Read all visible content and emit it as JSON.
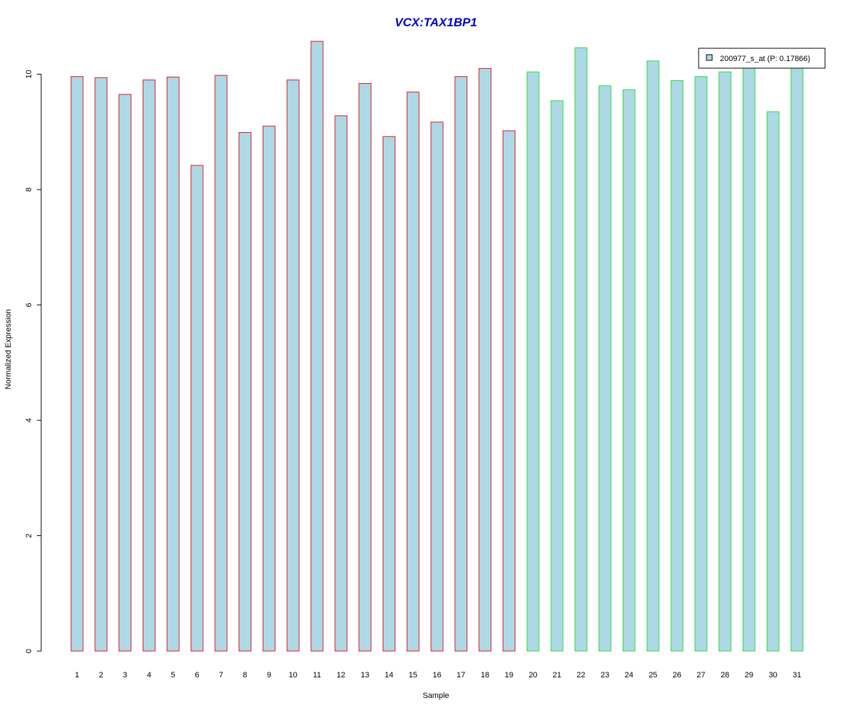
{
  "chart_data": {
    "type": "bar",
    "title": "VCX:TAX1BP1",
    "xlabel": "Sample",
    "ylabel": "Normalized Expression",
    "ylim": [
      0,
      10.56
    ],
    "yticks": [
      0,
      2,
      4,
      6,
      8,
      10
    ],
    "grid": false,
    "legend_position": "top-right",
    "categories": [
      "1",
      "2",
      "3",
      "4",
      "5",
      "6",
      "7",
      "8",
      "9",
      "10",
      "11",
      "12",
      "13",
      "14",
      "15",
      "16",
      "17",
      "18",
      "19",
      "20",
      "21",
      "22",
      "23",
      "24",
      "25",
      "26",
      "27",
      "28",
      "29",
      "30",
      "31"
    ],
    "series": [
      {
        "name": "200977_s_at (P: 0.17866)",
        "values": [
          9.96,
          9.94,
          9.65,
          9.9,
          9.95,
          8.42,
          9.98,
          8.99,
          9.1,
          9.9,
          10.57,
          9.28,
          9.84,
          8.92,
          9.69,
          9.17,
          9.96,
          10.1,
          9.02,
          10.04,
          9.54,
          10.46,
          9.8,
          9.73,
          10.23,
          9.89,
          9.96,
          10.04,
          10.15,
          9.35,
          10.12
        ]
      }
    ],
    "groups": [
      "red",
      "red",
      "red",
      "red",
      "red",
      "red",
      "red",
      "red",
      "red",
      "red",
      "red",
      "red",
      "red",
      "red",
      "red",
      "red",
      "red",
      "red",
      "red",
      "green",
      "green",
      "green",
      "green",
      "green",
      "green",
      "green",
      "green",
      "green",
      "green",
      "green",
      "green"
    ]
  },
  "colors": {
    "title": "#0000cc",
    "bar_fill": "#add8e6",
    "group_red": "#e31a1c",
    "group_green": "#33dd33",
    "axis": "#000000"
  }
}
